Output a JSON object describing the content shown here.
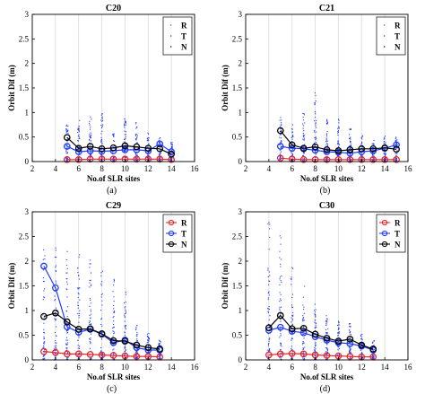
{
  "shared": {
    "xlabel": "No.of SLR sites",
    "ylabel": "Orbit Dif (m)",
    "xlim": [
      2,
      16
    ],
    "ylim": [
      0,
      3
    ],
    "xticks": [
      2,
      4,
      6,
      8,
      10,
      12,
      14,
      16
    ],
    "yticks": [
      0,
      0.5,
      1,
      1.5,
      2,
      2.5,
      3
    ],
    "grid": "vertical",
    "legend_position": "top-right",
    "colors": {
      "R": "#e8262a",
      "T": "#1f3cff",
      "N": "#000000"
    }
  },
  "chart_data": [
    {
      "type": "line",
      "title": "C20",
      "caption": "(a)",
      "xlabel": "No.of SLR sites",
      "ylabel": "Orbit Dif (m)",
      "xlim": [
        2,
        16
      ],
      "ylim": [
        0,
        3
      ],
      "legend": [
        "R",
        "T",
        "N"
      ],
      "x": [
        5,
        6,
        7,
        8,
        9,
        10,
        11,
        12,
        13,
        14
      ],
      "series": [
        {
          "name": "R",
          "values": [
            0.04,
            0.04,
            0.05,
            0.05,
            0.05,
            0.05,
            0.05,
            0.05,
            0.05,
            0.04
          ]
        },
        {
          "name": "T",
          "values": [
            0.31,
            0.2,
            0.22,
            0.21,
            0.22,
            0.24,
            0.24,
            0.22,
            0.36,
            0.2
          ]
        },
        {
          "name": "N",
          "values": [
            0.49,
            0.27,
            0.31,
            0.26,
            0.28,
            0.32,
            0.3,
            0.27,
            0.26,
            0.15
          ]
        }
      ],
      "scatter_max": [
        0.75,
        0.85,
        1.0,
        1.0,
        0.6,
        0.9,
        0.85,
        0.6,
        0.5,
        0.4
      ]
    },
    {
      "type": "line",
      "title": "C21",
      "caption": "(b)",
      "xlabel": "No.of SLR sites",
      "ylabel": "Orbit Dif (m)",
      "xlim": [
        2,
        16
      ],
      "ylim": [
        0,
        3
      ],
      "legend": [
        "R",
        "T",
        "N"
      ],
      "x": [
        5,
        6,
        7,
        8,
        9,
        10,
        11,
        12,
        13,
        14,
        15
      ],
      "series": [
        {
          "name": "R",
          "values": [
            0.07,
            0.05,
            0.04,
            0.04,
            0.04,
            0.04,
            0.04,
            0.04,
            0.04,
            0.04,
            0.04
          ]
        },
        {
          "name": "T",
          "values": [
            0.31,
            0.27,
            0.26,
            0.23,
            0.2,
            0.19,
            0.17,
            0.2,
            0.22,
            0.27,
            0.34
          ]
        },
        {
          "name": "N",
          "values": [
            0.63,
            0.34,
            0.27,
            0.3,
            0.24,
            0.22,
            0.24,
            0.26,
            0.26,
            0.28,
            0.25
          ]
        }
      ],
      "scatter_max": [
        0.95,
        0.75,
        1.05,
        1.4,
        0.9,
        0.9,
        0.7,
        0.55,
        0.5,
        0.55,
        0.5
      ]
    },
    {
      "type": "line",
      "title": "C29",
      "caption": "(c)",
      "xlabel": "No.of SLR sites",
      "ylabel": "Orbit Dif (m)",
      "xlim": [
        2,
        16
      ],
      "ylim": [
        0,
        3
      ],
      "legend": [
        "R",
        "T",
        "N"
      ],
      "x": [
        3,
        4,
        5,
        6,
        7,
        8,
        9,
        10,
        11,
        12,
        13
      ],
      "series": [
        {
          "name": "R",
          "values": [
            0.17,
            0.15,
            0.12,
            0.12,
            0.11,
            0.1,
            0.09,
            0.08,
            0.07,
            0.07,
            0.06
          ]
        },
        {
          "name": "T",
          "values": [
            1.9,
            1.46,
            0.67,
            0.56,
            0.62,
            0.52,
            0.35,
            0.4,
            0.25,
            0.2,
            0.2
          ]
        },
        {
          "name": "N",
          "values": [
            0.88,
            0.95,
            0.77,
            0.62,
            0.63,
            0.53,
            0.39,
            0.38,
            0.3,
            0.25,
            0.22
          ]
        }
      ],
      "scatter_max": [
        2.45,
        2.3,
        2.2,
        2.15,
        2.05,
        1.8,
        1.7,
        1.45,
        0.7,
        0.55,
        0.45
      ]
    },
    {
      "type": "line",
      "title": "C30",
      "caption": "(d)",
      "xlabel": "No.of SLR sites",
      "ylabel": "Orbit Dif (m)",
      "xlim": [
        2,
        16
      ],
      "ylim": [
        0,
        3
      ],
      "legend": [
        "R",
        "T",
        "N"
      ],
      "x": [
        4,
        5,
        6,
        7,
        8,
        9,
        10,
        11,
        12,
        13
      ],
      "series": [
        {
          "name": "R",
          "values": [
            0.1,
            0.12,
            0.13,
            0.12,
            0.1,
            0.09,
            0.08,
            0.07,
            0.06,
            0.06
          ]
        },
        {
          "name": "T",
          "values": [
            0.6,
            0.66,
            0.58,
            0.55,
            0.47,
            0.4,
            0.35,
            0.33,
            0.28,
            0.2
          ]
        },
        {
          "name": "N",
          "values": [
            0.65,
            0.9,
            0.63,
            0.64,
            0.52,
            0.44,
            0.38,
            0.42,
            0.3,
            0.22
          ]
        }
      ],
      "scatter_max": [
        2.8,
        2.6,
        1.9,
        1.5,
        1.2,
        0.9,
        0.8,
        0.8,
        0.55,
        0.4
      ]
    }
  ]
}
